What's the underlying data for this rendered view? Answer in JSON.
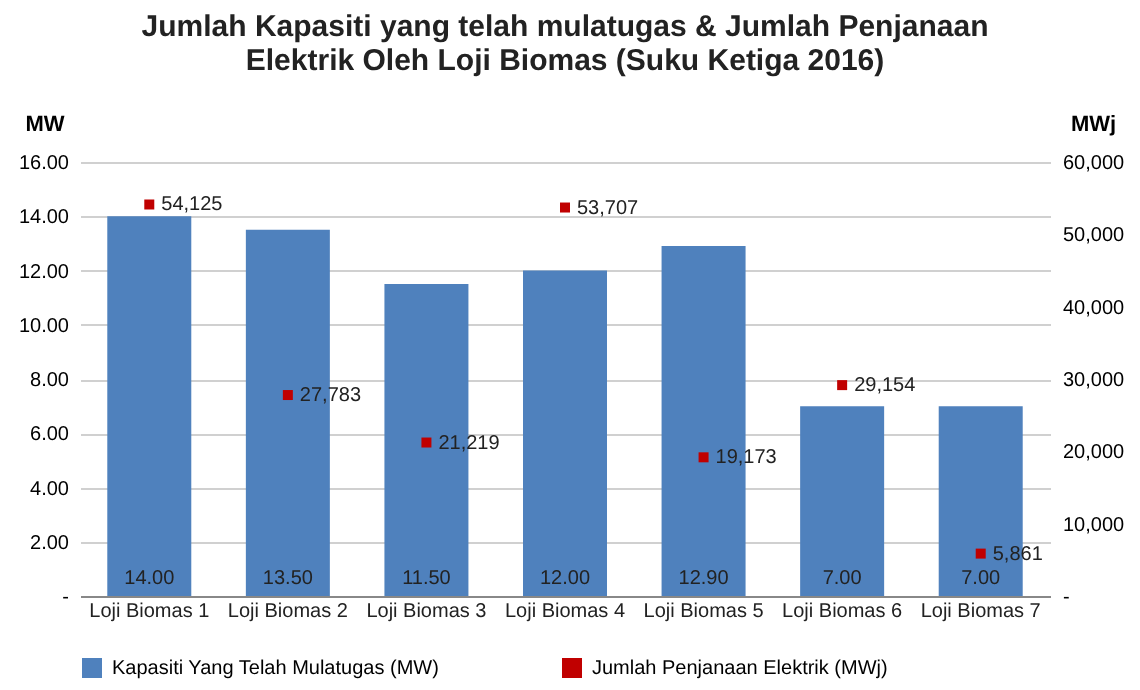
{
  "chart_data": {
    "type": "bar",
    "title": "Jumlah Kapasiti yang telah mulatugas & Jumlah Penjanaan Elektrik Oleh Loji Biomas (Suku Ketiga 2016)",
    "ylabel": "MW",
    "y2label": "MWj",
    "categories": [
      "Loji Biomas 1",
      "Loji Biomas 2",
      "Loji Biomas 3",
      "Loji Biomas 4",
      "Loji Biomas 5",
      "Loji Biomas 6",
      "Loji Biomas 7"
    ],
    "series": [
      {
        "name": "Kapasiti Yang Telah Mulatugas (MW)",
        "color": "#4f81bd",
        "values": [
          14.0,
          13.5,
          11.5,
          12.0,
          12.9,
          7.0,
          7.0
        ],
        "value_labels": [
          "14.00",
          "13.50",
          "11.50",
          "12.00",
          "12.90",
          "7.00",
          "7.00"
        ]
      },
      {
        "name": "Jumlah Penjanaan Elektrik (MWj)",
        "type": "scatter",
        "axis": "y2",
        "marker": "square",
        "color": "#c00000",
        "x": [
          "Loji Biomas 1",
          "Loji Biomas 2",
          "Loji Biomas 3",
          "Loji Biomas 4",
          "Loji Biomas 5",
          "Loji Biomas 6",
          "Loji Biomas 7"
        ],
        "values": [
          54125,
          27783,
          21219,
          53707,
          19173,
          29154,
          5861
        ],
        "value_labels": [
          "54,125",
          "27,783",
          "21,219",
          "53,707",
          "19,173",
          "29,154",
          "5,861"
        ]
      }
    ],
    "ylim": [
      0,
      16
    ],
    "yticks": [
      {
        "value": 0,
        "label": "-"
      },
      {
        "value": 2,
        "label": "2.00"
      },
      {
        "value": 4,
        "label": "4.00"
      },
      {
        "value": 6,
        "label": "6.00"
      },
      {
        "value": 8,
        "label": "8.00"
      },
      {
        "value": 10,
        "label": "10.00"
      },
      {
        "value": 12,
        "label": "12.00"
      },
      {
        "value": 14,
        "label": "14.00"
      },
      {
        "value": 16,
        "label": "16.00"
      }
    ],
    "y2lim": [
      0,
      60000
    ],
    "y2ticks": [
      {
        "value": 0,
        "label": "-"
      },
      {
        "value": 10000,
        "label": "10,000"
      },
      {
        "value": 20000,
        "label": "20,000"
      },
      {
        "value": 30000,
        "label": "30,000"
      },
      {
        "value": 40000,
        "label": "40,000"
      },
      {
        "value": 50000,
        "label": "50,000"
      },
      {
        "value": 60000,
        "label": "60,000"
      }
    ],
    "grid": "y",
    "legend": "bottom"
  }
}
